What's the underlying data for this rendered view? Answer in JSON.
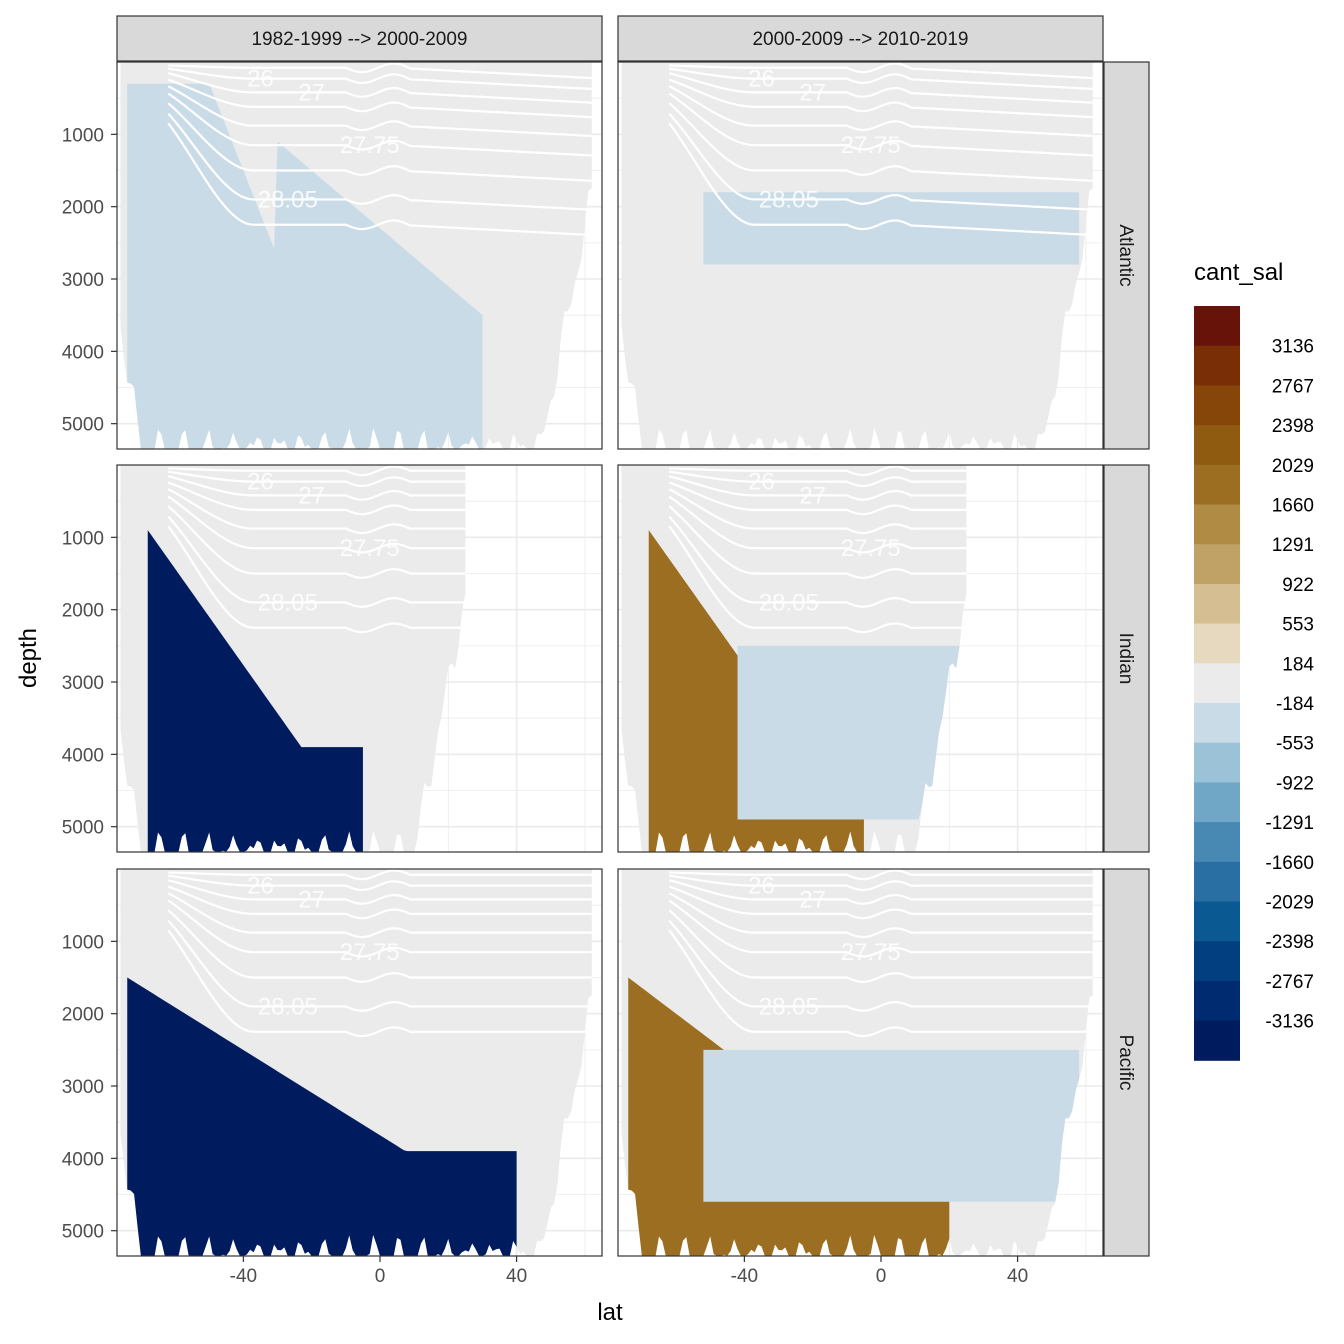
{
  "chart_data": {
    "type": "contour-section-facets",
    "xlabel": "lat",
    "ylabel": "depth",
    "x_ticks": [
      -40,
      0,
      40
    ],
    "y_ticks": [
      1000,
      2000,
      3000,
      4000,
      5000
    ],
    "xlim": [
      -77,
      65
    ],
    "ylim": [
      5350,
      0
    ],
    "columns": [
      "1982-1999 --> 2000-2009",
      "2000-2009 --> 2010-2019"
    ],
    "rows": [
      "Atlantic",
      "Indian",
      "Pacific"
    ],
    "legend": {
      "title": "cant_sal",
      "position": "right",
      "breaks": [
        3136,
        2767,
        2398,
        2029,
        1660,
        1291,
        922,
        553,
        184,
        -184,
        -553,
        -922,
        -1291,
        -1660,
        -2029,
        -2398,
        -2767,
        -3136
      ],
      "colors": [
        "#67130a",
        "#792e05",
        "#86460a",
        "#8f5b10",
        "#9c6e22",
        "#b08b43",
        "#c0a166",
        "#d5bf92",
        "#e6d9c0",
        "#eaebea",
        "#c9dbe7",
        "#9cc2d7",
        "#70a7c7",
        "#4889b4",
        "#2a6fa3",
        "#0b5993",
        "#013f80",
        "#012b71",
        "#011b5f"
      ]
    },
    "isopycnal_labels": [
      "26",
      "27",
      "27.75",
      "28.05"
    ],
    "panels": [
      {
        "row": "Atlantic",
        "col": 0,
        "ocean_max_lat": 62,
        "bottom_depth": 5350,
        "description_levels": [
          "-184"
        ],
        "regions": [
          {
            "level": -553,
            "lat_range": [
              -74,
              30
            ],
            "depth_range": [
              300,
              5350
            ]
          }
        ]
      },
      {
        "row": "Atlantic",
        "col": 1,
        "ocean_max_lat": 62,
        "bottom_depth": 5350,
        "regions": [
          {
            "level": -553,
            "lat_range": [
              -52,
              58
            ],
            "depth_range": [
              1800,
              2800
            ]
          }
        ]
      },
      {
        "row": "Indian",
        "col": 0,
        "ocean_max_lat": 25,
        "bottom_depth": 5350,
        "regions": [
          {
            "level": -3136,
            "lat_range": [
              -68,
              -5
            ],
            "depth_range": [
              900,
              5350
            ]
          }
        ]
      },
      {
        "row": "Indian",
        "col": 1,
        "ocean_max_lat": 25,
        "bottom_depth": 5350,
        "regions": [
          {
            "level": 2029,
            "lat_range": [
              -68,
              -5
            ],
            "depth_range": [
              900,
              5350
            ]
          },
          {
            "level": -553,
            "lat_range": [
              -42,
              23
            ],
            "depth_range": [
              2500,
              4900
            ]
          }
        ]
      },
      {
        "row": "Pacific",
        "col": 0,
        "ocean_max_lat": 62,
        "bottom_depth": 5350,
        "regions": [
          {
            "level": -3136,
            "lat_range": [
              -74,
              40
            ],
            "depth_range": [
              1500,
              5350
            ]
          }
        ]
      },
      {
        "row": "Pacific",
        "col": 1,
        "ocean_max_lat": 62,
        "bottom_depth": 5350,
        "regions": [
          {
            "level": 2029,
            "lat_range": [
              -74,
              20
            ],
            "depth_range": [
              1500,
              5350
            ]
          },
          {
            "level": -553,
            "lat_range": [
              -52,
              58
            ],
            "depth_range": [
              2500,
              4600
            ]
          }
        ]
      }
    ]
  }
}
